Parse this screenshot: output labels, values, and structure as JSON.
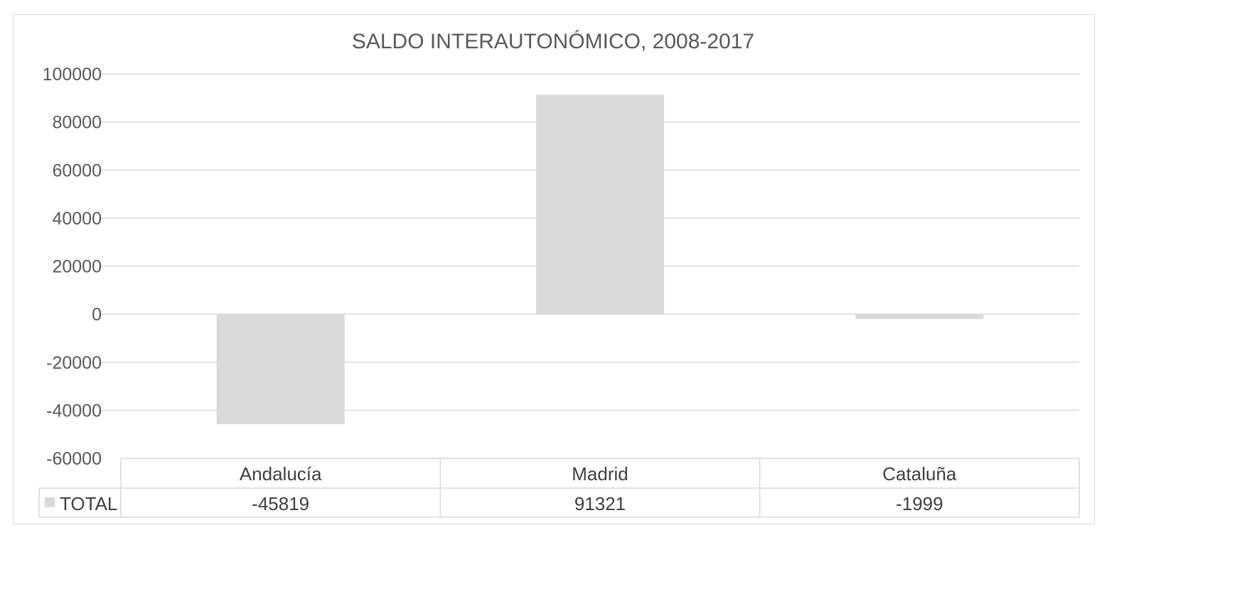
{
  "chart_data": {
    "type": "bar",
    "title": "SALDO INTERAUTONÓMICO, 2008-2017",
    "categories": [
      "Andalucía",
      "Madrid",
      "Cataluña"
    ],
    "series": [
      {
        "name": "TOTAL",
        "values": [
          -45819,
          91321,
          -1999
        ],
        "labels": [
          "-45819",
          "91321",
          "-1999"
        ]
      }
    ],
    "ylim": [
      -60000,
      100000
    ],
    "yticks": [
      100000,
      80000,
      60000,
      40000,
      20000,
      0,
      -20000,
      -40000,
      -60000
    ],
    "ytick_labels": [
      "100000",
      "80000",
      "60000",
      "40000",
      "20000",
      "0",
      "-20000",
      "-40000",
      "-60000"
    ],
    "grid": true,
    "data_table": true,
    "bar_color": "#d9d9d9",
    "grid_color": "#d9d9d9",
    "text_color": "#595959"
  }
}
